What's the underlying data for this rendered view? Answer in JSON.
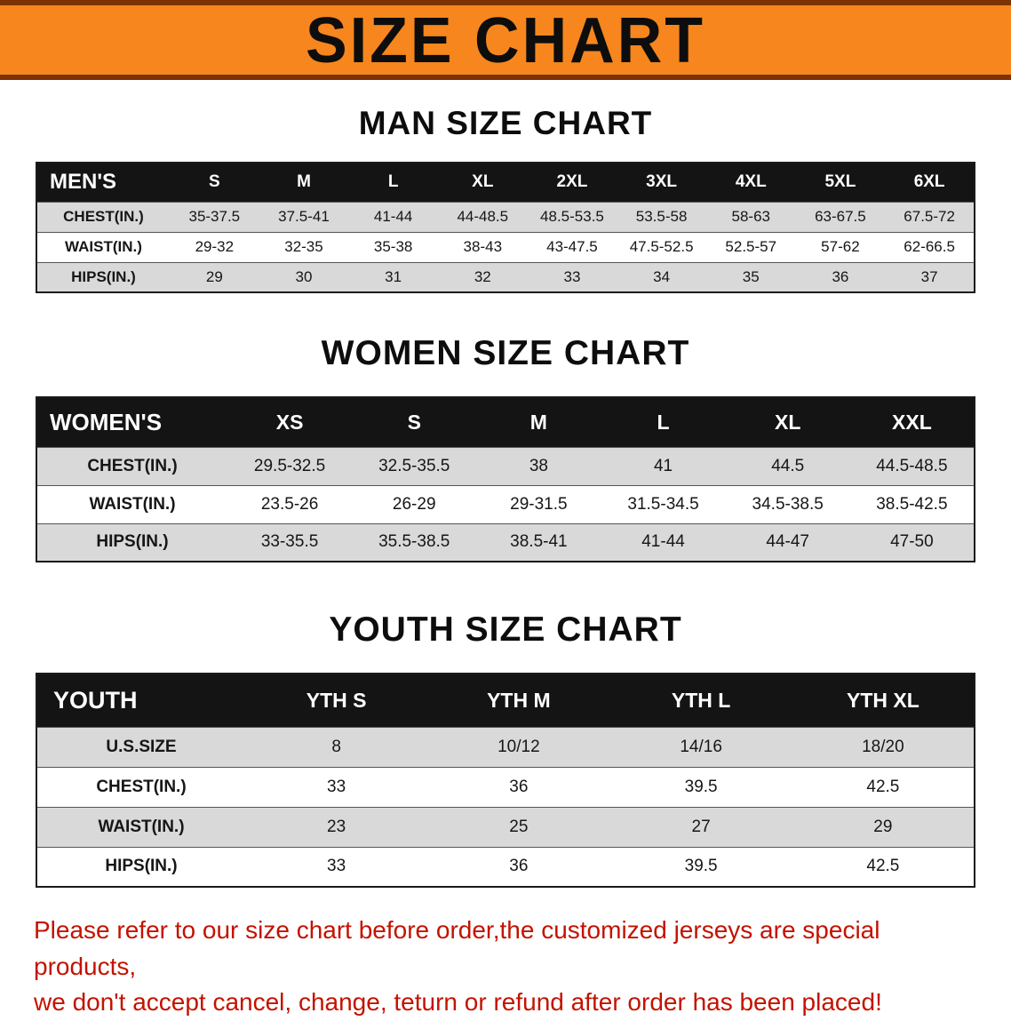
{
  "banner": {
    "title": "SIZE CHART"
  },
  "men": {
    "heading": "MAN SIZE CHART",
    "header": [
      "MEN'S",
      "S",
      "M",
      "L",
      "XL",
      "2XL",
      "3XL",
      "4XL",
      "5XL",
      "6XL"
    ],
    "rows": [
      [
        "CHEST(IN.)",
        "35-37.5",
        "37.5-41",
        "41-44",
        "44-48.5",
        "48.5-53.5",
        "53.5-58",
        "58-63",
        "63-67.5",
        "67.5-72"
      ],
      [
        "WAIST(IN.)",
        "29-32",
        "32-35",
        "35-38",
        "38-43",
        "43-47.5",
        "47.5-52.5",
        "52.5-57",
        "57-62",
        "62-66.5"
      ],
      [
        "HIPS(IN.)",
        "29",
        "30",
        "31",
        "32",
        "33",
        "34",
        "35",
        "36",
        "37"
      ]
    ]
  },
  "women": {
    "heading": "WOMEN SIZE CHART",
    "header": [
      "WOMEN'S",
      "XS",
      "S",
      "M",
      "L",
      "XL",
      "XXL"
    ],
    "rows": [
      [
        "CHEST(IN.)",
        "29.5-32.5",
        "32.5-35.5",
        "38",
        "41",
        "44.5",
        "44.5-48.5"
      ],
      [
        "WAIST(IN.)",
        "23.5-26",
        "26-29",
        "29-31.5",
        "31.5-34.5",
        "34.5-38.5",
        "38.5-42.5"
      ],
      [
        "HIPS(IN.)",
        "33-35.5",
        "35.5-38.5",
        "38.5-41",
        "41-44",
        "44-47",
        "47-50"
      ]
    ]
  },
  "youth": {
    "heading": "YOUTH SIZE CHART",
    "header": [
      "YOUTH",
      "YTH S",
      "YTH M",
      "YTH L",
      "YTH XL"
    ],
    "rows": [
      [
        "U.S.SIZE",
        "8",
        "10/12",
        "14/16",
        "18/20"
      ],
      [
        "CHEST(IN.)",
        "33",
        "36",
        "39.5",
        "42.5"
      ],
      [
        "WAIST(IN.)",
        "23",
        "25",
        "27",
        "29"
      ],
      [
        "HIPS(IN.)",
        "33",
        "36",
        "39.5",
        "42.5"
      ]
    ]
  },
  "footer": {
    "line1": "Please refer to our size chart before order,the customized jerseys are special products,",
    "line2": "we don't accept cancel, change, teturn or refund after order has been placed!"
  },
  "colors": {
    "banner_orange": "#f6861d",
    "banner_border_brown": "#7e3203",
    "table_header_black": "#141414",
    "row_stripe_gray": "#d9d9d9",
    "warning_red": "#c41200"
  }
}
